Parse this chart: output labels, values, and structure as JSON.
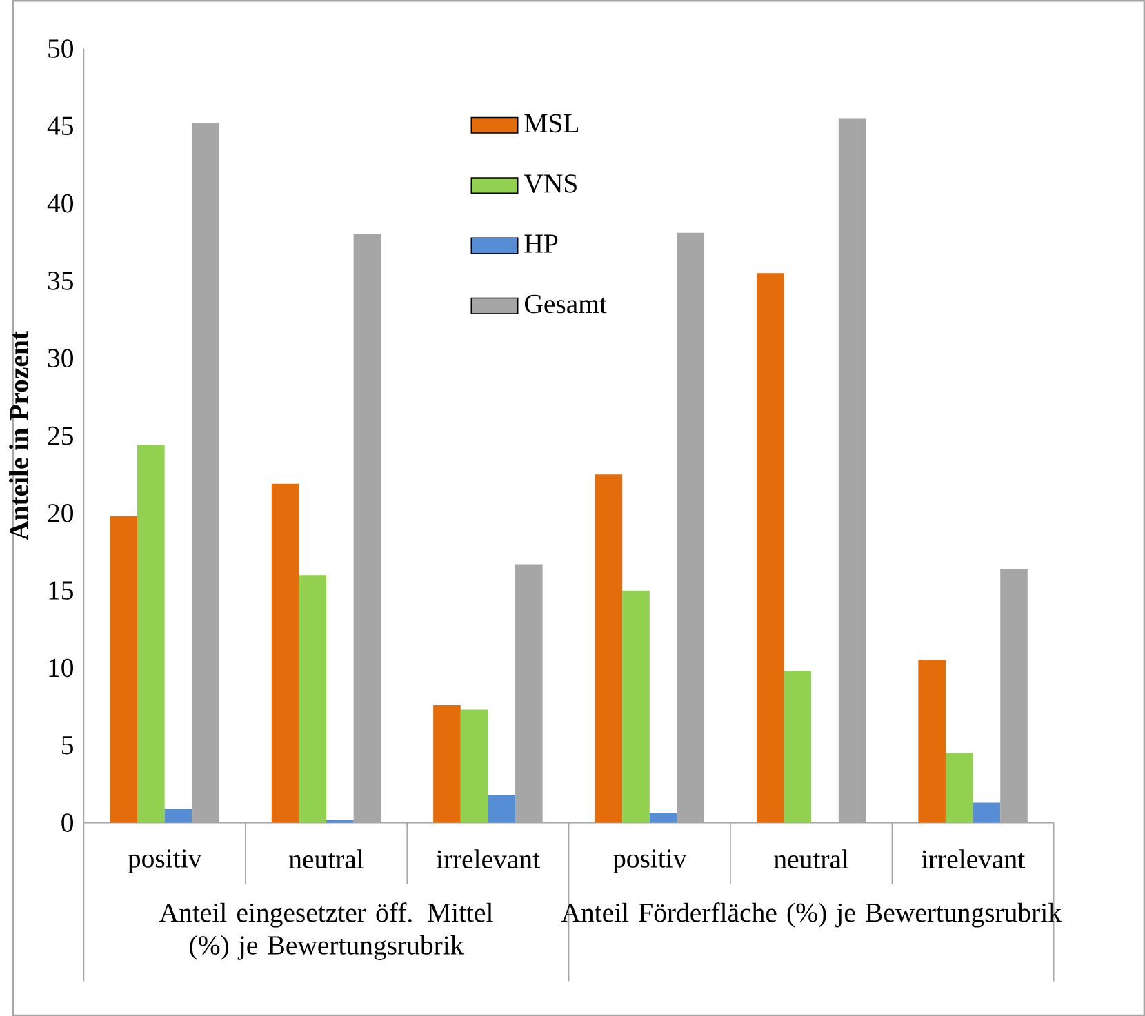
{
  "chart_data": {
    "type": "bar",
    "ylabel": "Anteile in Prozent",
    "categories": [
      "positiv",
      "neutral",
      "irrelevant",
      "positiv",
      "neutral",
      "irrelevant"
    ],
    "series": [
      {
        "name": "MSL",
        "color": "#e46c0a",
        "values": [
          19.8,
          21.9,
          7.6,
          22.5,
          35.5,
          10.5
        ]
      },
      {
        "name": "VNS",
        "color": "#92d050",
        "values": [
          24.4,
          16.0,
          7.3,
          15.0,
          9.8,
          4.5
        ]
      },
      {
        "name": "HP",
        "color": "#558ed5",
        "values": [
          0.9,
          0.2,
          1.8,
          0.6,
          0,
          1.3
        ]
      },
      {
        "name": "Gesamt",
        "color": "#a6a6a6",
        "values": [
          45.2,
          38.0,
          16.7,
          38.1,
          45.5,
          16.4
        ]
      }
    ],
    "ylim": [
      0,
      50
    ],
    "yticks": [
      0,
      5,
      10,
      15,
      20,
      25,
      30,
      35,
      40,
      45,
      50
    ],
    "legend": "top",
    "annotations": [
      "Anteil eingesetzter öff. Mittel (%) je Bewertungsrubrik",
      "Anteil Förderfläche (%) je Bewertungsrubrik"
    ]
  }
}
